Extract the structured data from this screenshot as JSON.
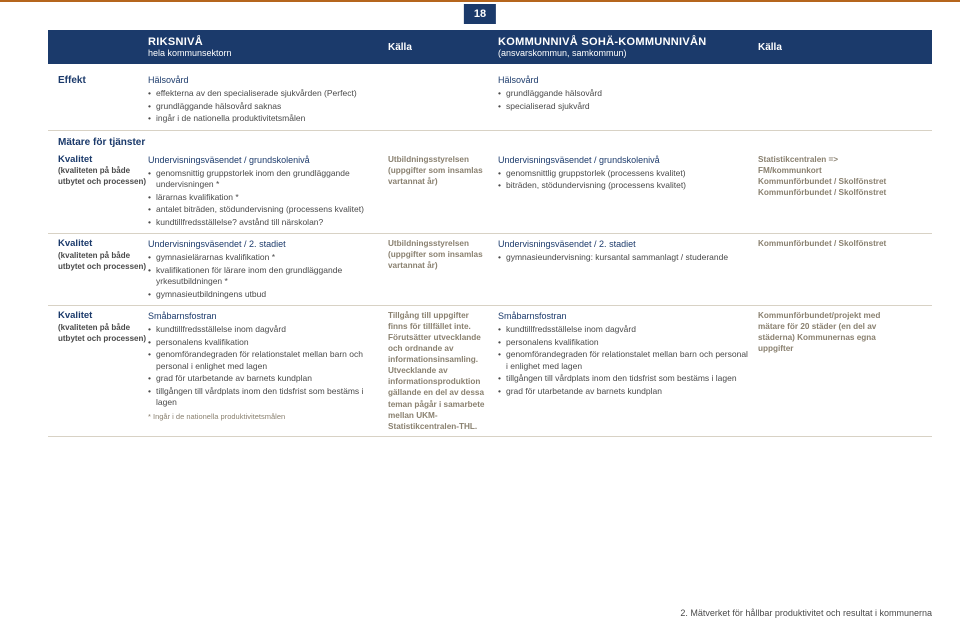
{
  "page_number": "18",
  "header": {
    "col1_title": "RIKSNIVÅ",
    "col1_sub": "hela kommunsektorn",
    "col2": "Källa",
    "col3_title": "KOMMUNNIVÅ sohä-kommunnivån",
    "col3_sub": "(ansvarskommun, samkommun)",
    "col4": "Källa"
  },
  "effekt": {
    "label": "Effekt",
    "left": {
      "title": "Hälsovård",
      "items": [
        "effekterna av den specialiserade sjukvården (Perfect)",
        "grundläggande hälsovård saknas",
        "ingår i de nationella produktivitetsmålen"
      ]
    },
    "right": {
      "title": "Hälsovård",
      "items": [
        "grundläggande hälsovård",
        "specialiserad sjukvård"
      ]
    }
  },
  "section": "Mätare för tjänster",
  "rows": [
    {
      "label_title": "Kvalitet",
      "label_sub": "(kvaliteten på både utbytet och processen)",
      "c1_title": "Undervisningsväsendet / grundskolenivå",
      "c1_items": [
        "genomsnittig gruppstorlek inom den grundläggande undervisningen *",
        "lärarnas kvalifikation *",
        "antalet biträden, stödundervisning (processens kvalitet)",
        "kundtillfredsställelse? avstånd till närskolan?"
      ],
      "c2": "Utbildningsstyrelsen (uppgifter som insamlas vartannat år)",
      "c3_title": "Undervisningsväsendet / grundskolenivå",
      "c3_items": [
        "genomsnittlig gruppstorlek (processens kvalitet)",
        "biträden, stödundervisning (processens kvalitet)"
      ],
      "c4": "Statistikcentralen => FM/kommunkort Kommunförbundet / Skolfönstret Kommunförbundet / Skolfönstret"
    },
    {
      "label_title": "Kvalitet",
      "label_sub": "(kvaliteten på både utbytet och processen)",
      "c1_title": "Undervisningsväsendet / 2. stadiet",
      "c1_items": [
        "gymnasielärarnas kvalifikation *",
        "kvalifikationen för lärare inom den grundläggande yrkesutbildningen *",
        "gymnasieutbildningens utbud"
      ],
      "c2": "Utbildningsstyrelsen (uppgifter som insamlas vartannat år)",
      "c3_title": "Undervisningsväsendet / 2. stadiet",
      "c3_items": [
        "gymnasieundervisning: kursantal sammanlagt / studerande"
      ],
      "c4": "Kommunförbundet / Skolfönstret"
    },
    {
      "label_title": "Kvalitet",
      "label_sub": "(kvaliteten på både utbytet och processen)",
      "c1_title": "Småbarnsfostran",
      "c1_items": [
        "kundtillfredsställelse inom dagvård",
        "personalens kvalifikation",
        "genomförandegraden för relationstalet mellan barn och personal i enlighet med lagen",
        "grad för utarbetande av barnets kundplan",
        "tillgången till vårdplats inom den tidsfrist som bestäms i lagen"
      ],
      "c1_note": "* Ingår i de nationella produktivitetsmålen",
      "c2": "Tillgång till uppgifter finns för tillfället inte. Förutsätter utvecklande och ordnande av informationsinsamling. Utvecklande av informationsproduktion gällande en del av dessa teman pågår i samarbete mellan UKM-Statistikcentralen-THL.",
      "c3_title": "Småbarnsfostran",
      "c3_items": [
        "kundtillfredsställelse inom dagvård",
        "personalens kvalifikation",
        "genomförandegraden för relationstalet mellan barn och personal i enlighet med lagen",
        "tillgången till vårdplats inom den tidsfrist som bestäms i lagen",
        "grad för utarbetande av barnets kundplan"
      ],
      "c4": "Kommunförbundet/projekt med mätare för 20 städer (en del av städerna) Kommunernas egna uppgifter"
    }
  ],
  "footer": "2. Mätverket för hållbar produktivitet och resultat i kommunerna"
}
